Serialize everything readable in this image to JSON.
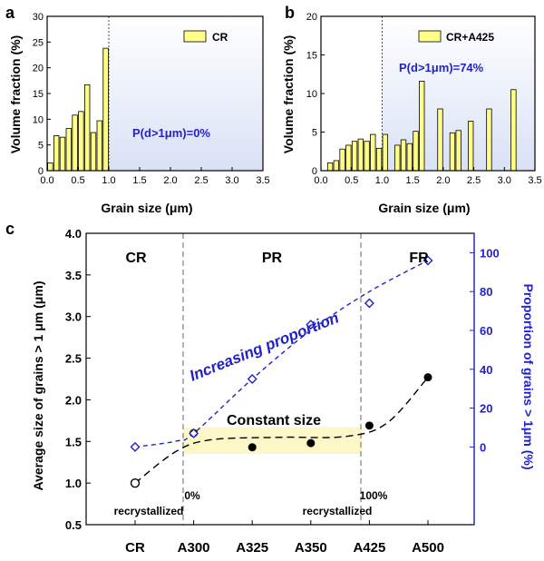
{
  "panel_labels": {
    "a": "a",
    "b": "b",
    "c": "c"
  },
  "colors": {
    "bar_fill": "#ffff88",
    "blue": "#2222cc",
    "shade_blue": "#dfe6f6",
    "shade_yellow": "#fbf7c6"
  },
  "chart_data": [
    {
      "id": "a",
      "type": "bar",
      "xlabel": "Grain size (μm)",
      "ylabel": "Volume fraction (%)",
      "xlim": [
        0.0,
        3.5
      ],
      "ylim": [
        0,
        30
      ],
      "xticks": [
        "0.0",
        "0.5",
        "1.0",
        "1.5",
        "2.0",
        "2.5",
        "3.0",
        "3.5"
      ],
      "yticks": [
        "0",
        "5",
        "10",
        "15",
        "20",
        "25",
        "30"
      ],
      "legend": "CR",
      "annotation": "P(d>1μm)=0%",
      "threshold_x": 1.0,
      "x": [
        0.05,
        0.15,
        0.25,
        0.35,
        0.45,
        0.55,
        0.65,
        0.75,
        0.85,
        0.95
      ],
      "values": [
        1.5,
        6.8,
        6.5,
        8.2,
        10.8,
        11.5,
        16.7,
        7.4,
        9.7,
        23.8
      ]
    },
    {
      "id": "b",
      "type": "bar",
      "xlabel": "Grain size (μm)",
      "ylabel": "Volume fraction (%)",
      "xlim": [
        0.0,
        3.5
      ],
      "ylim": [
        0,
        20
      ],
      "xticks": [
        "0.0",
        "0.5",
        "1.0",
        "1.5",
        "2.0",
        "2.5",
        "3.0",
        "3.5"
      ],
      "yticks": [
        "0",
        "5",
        "10",
        "15",
        "20"
      ],
      "legend": "CR+A425",
      "annotation": "P(d>1μm)=74%",
      "threshold_x": 1.0,
      "x": [
        0.15,
        0.25,
        0.35,
        0.45,
        0.55,
        0.65,
        0.75,
        0.85,
        0.95,
        1.05,
        1.25,
        1.35,
        1.45,
        1.55,
        1.65,
        1.95,
        2.15,
        2.25,
        2.45,
        2.75,
        3.15
      ],
      "values": [
        1.0,
        1.3,
        2.8,
        3.3,
        3.8,
        4.1,
        3.8,
        4.7,
        2.9,
        4.7,
        3.3,
        4.0,
        3.5,
        5.1,
        11.6,
        8.0,
        4.9,
        5.2,
        6.4,
        8.0,
        10.5
      ]
    },
    {
      "id": "c",
      "type": "line",
      "categories": [
        "CR",
        "A300",
        "A325",
        "A350",
        "A425",
        "A500"
      ],
      "ylabel": "Average size of grains > 1 μm (μm)",
      "ylabel_right": "Proportion of grains > 1μm (%)",
      "ylim": [
        0.5,
        4.0
      ],
      "yticks": [
        "0.5",
        "1.0",
        "1.5",
        "2.0",
        "2.5",
        "3.0",
        "3.5",
        "4.0"
      ],
      "ylim_right": [
        -40,
        110
      ],
      "yticks_right": [
        "0",
        "20",
        "40",
        "60",
        "80",
        "100"
      ],
      "series": [
        {
          "values_x": [
            0,
            1,
            2,
            3,
            4,
            5
          ],
          "values": [
            1.0,
            1.6,
            1.43,
            1.48,
            1.69,
            2.27
          ]
        },
        {
          "values_x": [
            0,
            1,
            2,
            3,
            4,
            5
          ],
          "values": [
            0,
            7,
            35,
            63,
            74,
            96
          ]
        }
      ],
      "regions": [
        "CR",
        "PR",
        "FR"
      ],
      "texts": {
        "increasing": "Increasing proportion",
        "constant": "Constant size",
        "pct0": "0%",
        "pct100": "100%",
        "recryst_left": "recrystallized",
        "recryst_right": "recrystallized"
      }
    }
  ]
}
